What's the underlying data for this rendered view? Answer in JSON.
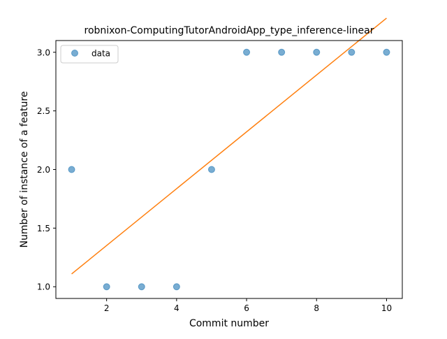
{
  "chart_data": {
    "type": "scatter",
    "title": "robnixon-ComputingTutorAndroidApp_type_inference-linear",
    "xlabel": "Commit number",
    "ylabel": "Number of instance of a feature",
    "xlim": [
      0.55,
      10.45
    ],
    "ylim": [
      0.9,
      3.1
    ],
    "xticks": [
      2,
      4,
      6,
      8,
      10
    ],
    "xtick_labels": [
      "2",
      "4",
      "6",
      "8",
      "10"
    ],
    "yticks": [
      1.0,
      1.5,
      2.0,
      2.5,
      3.0
    ],
    "ytick_labels": [
      "1.0",
      "1.5",
      "2.0",
      "2.5",
      "3.0"
    ],
    "grid": false,
    "legend_position": "upper left",
    "series": [
      {
        "name": "data",
        "kind": "scatter",
        "color": "#1f77b4",
        "x": [
          1,
          2,
          3,
          4,
          5,
          6,
          7,
          8,
          9,
          10
        ],
        "y": [
          2,
          1,
          1,
          1,
          2,
          3,
          3,
          3,
          3,
          3
        ]
      },
      {
        "kind": "line",
        "color": "#ff7f0e",
        "x": [
          1,
          10
        ],
        "y": [
          1.109,
          3.291
        ]
      }
    ]
  }
}
